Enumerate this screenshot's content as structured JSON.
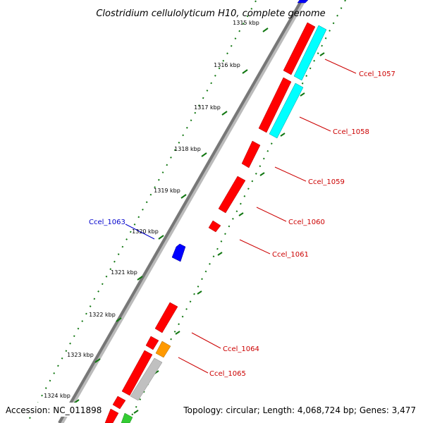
{
  "title": "Clostridium cellulolyticum H10, complete genome",
  "footer": {
    "accession": "Accession: NC_011898",
    "summary": "Topology: circular; Length: 4,068,724 bp; Genes: 3,477"
  },
  "scale_labels": [
    "1315 kbp",
    "1316 kbp",
    "1317 kbp",
    "1318 kbp",
    "1319 kbp",
    "1320 kbp",
    "1321 kbp",
    "1322 kbp",
    "1323 kbp",
    "1324 kbp"
  ],
  "gene_labels": [
    {
      "text": "Ccel_1057",
      "color": "#cc0000"
    },
    {
      "text": "Ccel_1058",
      "color": "#cc0000"
    },
    {
      "text": "Ccel_1059",
      "color": "#cc0000"
    },
    {
      "text": "Ccel_1060",
      "color": "#cc0000"
    },
    {
      "text": "Ccel_1061",
      "color": "#cc0000"
    },
    {
      "text": "Ccel_1063",
      "color": "#0000cc"
    },
    {
      "text": "Ccel_1064",
      "color": "#cc0000"
    },
    {
      "text": "Ccel_1065",
      "color": "#cc0000"
    }
  ],
  "feature_colors": {
    "cds_forward": "#ff0000",
    "cds_reverse": "#0000ff",
    "rrna": "#00ffff",
    "trna": "#ff9900",
    "misc": "#c0c0c0",
    "other": "#33cc33",
    "backbone": "#888888",
    "ticks": "#117711"
  }
}
